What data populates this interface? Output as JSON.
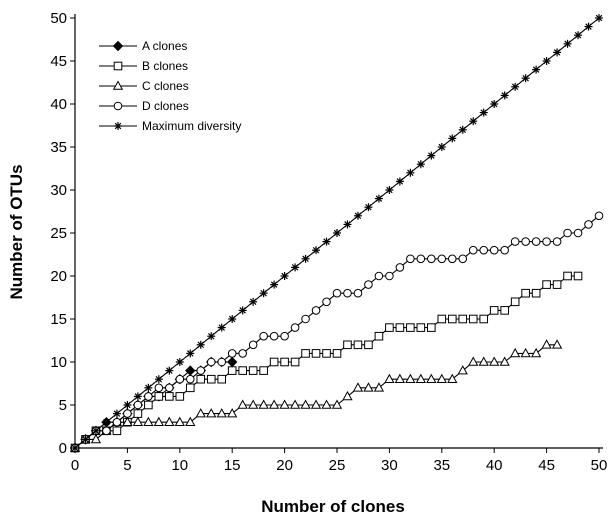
{
  "chart_data": {
    "type": "line",
    "xlabel": "Number of clones",
    "ylabel": "Number of OTUs",
    "xlim": [
      0,
      50
    ],
    "ylim": [
      0,
      50
    ],
    "xticks": [
      0,
      5,
      10,
      15,
      20,
      25,
      30,
      35,
      40,
      45,
      50
    ],
    "yticks": [
      0,
      5,
      10,
      15,
      20,
      25,
      30,
      35,
      40,
      45,
      50
    ],
    "grid": false,
    "legend_position": "top-left",
    "series": [
      {
        "name": "A clones",
        "marker": "filled-diamond",
        "x": [
          0,
          1,
          2,
          3,
          4,
          5,
          6,
          7,
          8,
          9,
          10,
          11,
          12,
          13,
          14,
          15
        ],
        "y": [
          0,
          1,
          2,
          3,
          3,
          4,
          5,
          6,
          6,
          7,
          8,
          9,
          9,
          10,
          10,
          10
        ]
      },
      {
        "name": "B clones",
        "marker": "open-square",
        "x": [
          0,
          1,
          2,
          3,
          4,
          5,
          6,
          7,
          8,
          9,
          10,
          11,
          12,
          13,
          14,
          15,
          16,
          17,
          18,
          19,
          20,
          21,
          22,
          23,
          24,
          25,
          26,
          27,
          28,
          29,
          30,
          31,
          32,
          33,
          34,
          35,
          36,
          37,
          38,
          39,
          40,
          41,
          42,
          43,
          44,
          45,
          46,
          47,
          48
        ],
        "y": [
          0,
          1,
          2,
          2,
          2,
          3,
          4,
          5,
          6,
          6,
          6,
          7,
          8,
          8,
          8,
          9,
          9,
          9,
          9,
          10,
          10,
          10,
          11,
          11,
          11,
          11,
          12,
          12,
          12,
          13,
          14,
          14,
          14,
          14,
          14,
          15,
          15,
          15,
          15,
          15,
          16,
          16,
          17,
          18,
          18,
          19,
          19,
          20,
          20
        ]
      },
      {
        "name": "C clones",
        "marker": "open-triangle",
        "x": [
          0,
          1,
          2,
          3,
          4,
          5,
          6,
          7,
          8,
          9,
          10,
          11,
          12,
          13,
          14,
          15,
          16,
          17,
          18,
          19,
          20,
          21,
          22,
          23,
          24,
          25,
          26,
          27,
          28,
          29,
          30,
          31,
          32,
          33,
          34,
          35,
          36,
          37,
          38,
          39,
          40,
          41,
          42,
          43,
          44,
          45,
          46
        ],
        "y": [
          0,
          1,
          1,
          2,
          3,
          3,
          3,
          3,
          3,
          3,
          3,
          3,
          4,
          4,
          4,
          4,
          5,
          5,
          5,
          5,
          5,
          5,
          5,
          5,
          5,
          5,
          6,
          7,
          7,
          7,
          8,
          8,
          8,
          8,
          8,
          8,
          8,
          9,
          10,
          10,
          10,
          10,
          11,
          11,
          11,
          12,
          12
        ]
      },
      {
        "name": "D clones",
        "marker": "open-circle",
        "x": [
          0,
          1,
          2,
          3,
          4,
          5,
          6,
          7,
          8,
          9,
          10,
          11,
          12,
          13,
          14,
          15,
          16,
          17,
          18,
          19,
          20,
          21,
          22,
          23,
          24,
          25,
          26,
          27,
          28,
          29,
          30,
          31,
          32,
          33,
          34,
          35,
          36,
          37,
          38,
          39,
          40,
          41,
          42,
          43,
          44,
          45,
          46,
          47,
          48,
          49,
          50
        ],
        "y": [
          0,
          1,
          2,
          2,
          3,
          4,
          5,
          6,
          7,
          7,
          8,
          8,
          9,
          10,
          10,
          11,
          11,
          12,
          13,
          13,
          13,
          14,
          15,
          16,
          17,
          18,
          18,
          18,
          19,
          20,
          20,
          21,
          22,
          22,
          22,
          22,
          22,
          22,
          23,
          23,
          23,
          23,
          24,
          24,
          24,
          24,
          24,
          25,
          25,
          26,
          27
        ]
      },
      {
        "name": "Maximum diversity",
        "marker": "asterisk",
        "x": [
          0,
          1,
          2,
          3,
          4,
          5,
          6,
          7,
          8,
          9,
          10,
          11,
          12,
          13,
          14,
          15,
          16,
          17,
          18,
          19,
          20,
          21,
          22,
          23,
          24,
          25,
          26,
          27,
          28,
          29,
          30,
          31,
          32,
          33,
          34,
          35,
          36,
          37,
          38,
          39,
          40,
          41,
          42,
          43,
          44,
          45,
          46,
          47,
          48,
          49,
          50
        ],
        "y": [
          0,
          1,
          2,
          3,
          4,
          5,
          6,
          7,
          8,
          9,
          10,
          11,
          12,
          13,
          14,
          15,
          16,
          17,
          18,
          19,
          20,
          21,
          22,
          23,
          24,
          25,
          26,
          27,
          28,
          29,
          30,
          31,
          32,
          33,
          34,
          35,
          36,
          37,
          38,
          39,
          40,
          41,
          42,
          43,
          44,
          45,
          46,
          47,
          48,
          49,
          50
        ]
      }
    ]
  }
}
